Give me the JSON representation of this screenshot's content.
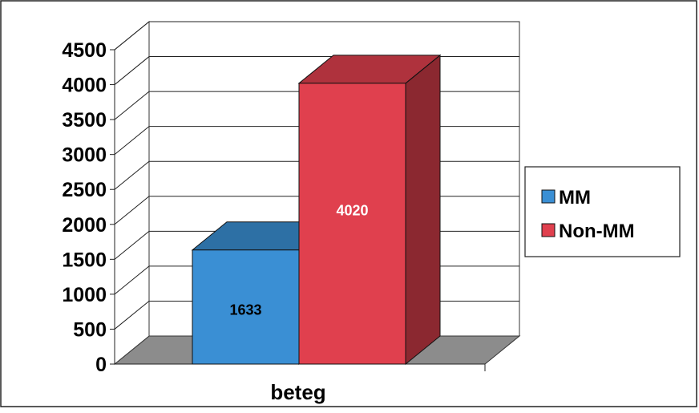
{
  "chart_data": {
    "type": "bar",
    "categories": [
      "beteg"
    ],
    "series": [
      {
        "name": "MM",
        "values": [
          1633
        ],
        "color": "#3A8FD4"
      },
      {
        "name": "Non-MM",
        "values": [
          4020
        ],
        "color": "#E0404E"
      }
    ],
    "data_labels": [
      "1633",
      "4020"
    ],
    "xlabel": "beteg",
    "ylim": [
      0,
      4500
    ],
    "yticks": [
      0,
      500,
      1000,
      1500,
      2000,
      2500,
      3000,
      3500,
      4000,
      4500
    ],
    "grid": true,
    "legend_position": "right",
    "style": "3d-column"
  }
}
